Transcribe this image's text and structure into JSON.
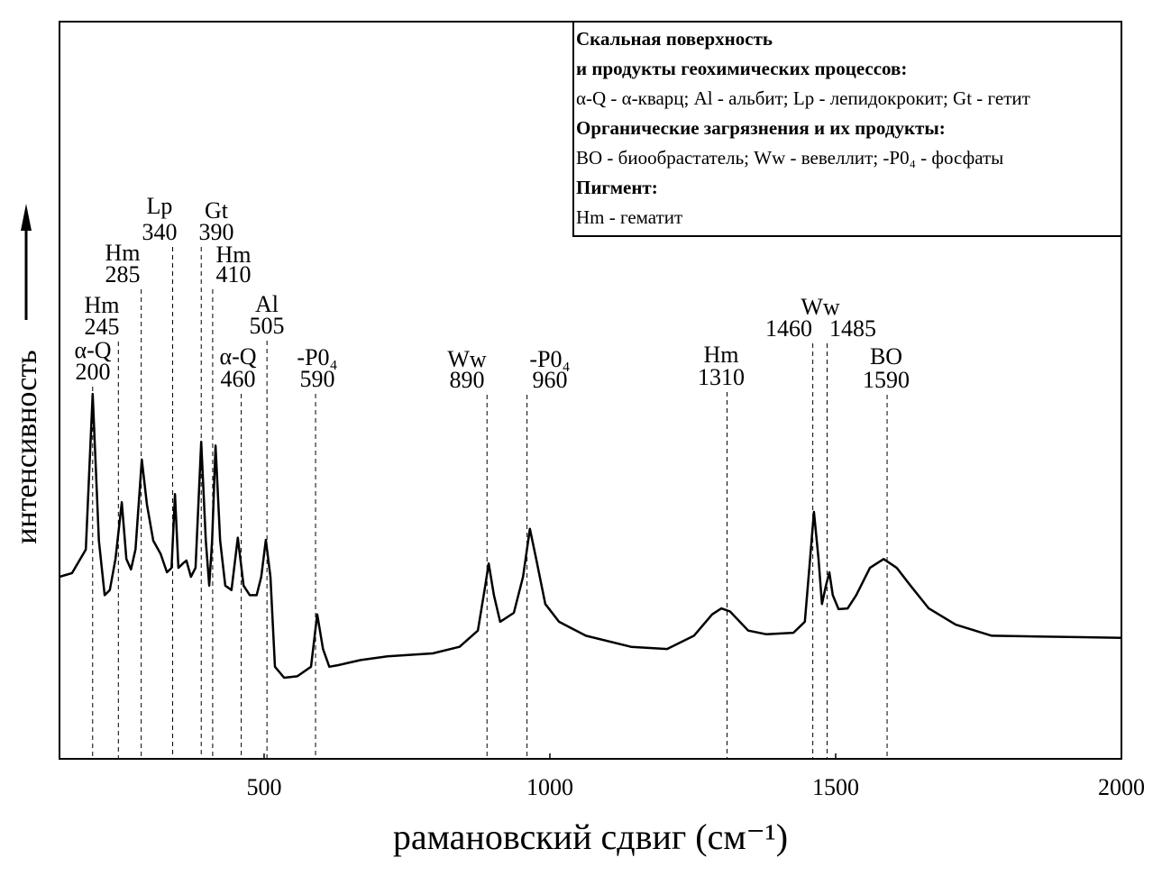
{
  "chart_data": {
    "type": "line",
    "x_label": "рамановский сдвиг (см⁻¹)",
    "y_label": "интенсивность",
    "xlim": [
      142,
      2000
    ],
    "ylim": [
      0,
      100
    ],
    "xticks": [
      500,
      1000,
      1500,
      2000
    ],
    "color": "#000000",
    "x": [
      142,
      164,
      188,
      200,
      211,
      221,
      230,
      240,
      251,
      259,
      267,
      275,
      286,
      295,
      306,
      319,
      330,
      338,
      344,
      350,
      358,
      364,
      372,
      380,
      390,
      398,
      404,
      409,
      415,
      423,
      432,
      443,
      454,
      464,
      475,
      487,
      495,
      503,
      511,
      519,
      535,
      558,
      582,
      593,
      603,
      614,
      629,
      669,
      716,
      795,
      842,
      874,
      887,
      893,
      902,
      913,
      937,
      953,
      965,
      976,
      992,
      1016,
      1063,
      1142,
      1205,
      1252,
      1284,
      1300,
      1315,
      1347,
      1379,
      1426,
      1446,
      1454,
      1462,
      1470,
      1476,
      1483,
      1489,
      1495,
      1505,
      1521,
      1536,
      1560,
      1584,
      1607,
      1631,
      1663,
      1710,
      1773,
      1852,
      1931,
      2000
    ],
    "values": [
      24.7,
      25.2,
      28.4,
      49.5,
      29.6,
      22.2,
      22.9,
      27.1,
      34.8,
      27.1,
      25.7,
      28.4,
      40.6,
      34.5,
      29.6,
      27.8,
      25.3,
      25.9,
      35.9,
      25.9,
      26.5,
      26.9,
      24.7,
      25.9,
      43.0,
      29.6,
      23.5,
      29.6,
      42.5,
      29.6,
      23.5,
      22.9,
      30.0,
      23.5,
      22.2,
      22.2,
      24.7,
      29.7,
      24.7,
      12.5,
      11.0,
      11.2,
      12.5,
      19.6,
      14.9,
      12.5,
      12.7,
      13.4,
      13.9,
      14.3,
      15.2,
      17.4,
      23.5,
      26.5,
      22.2,
      18.6,
      19.8,
      24.7,
      31.2,
      27.1,
      21.0,
      18.6,
      16.7,
      15.2,
      14.9,
      16.7,
      19.6,
      20.4,
      20.0,
      17.4,
      16.9,
      17.1,
      18.6,
      25.9,
      33.5,
      27.1,
      21.0,
      23.5,
      25.3,
      22.2,
      20.3,
      20.4,
      22.2,
      25.9,
      27.1,
      25.9,
      23.5,
      20.4,
      18.2,
      16.7,
      16.6,
      16.5,
      16.4
    ],
    "peaks": [
      {
        "position": 200,
        "label": "α-Q"
      },
      {
        "position": 245,
        "label": "Hm"
      },
      {
        "position": 285,
        "label": "Hm"
      },
      {
        "position": 340,
        "label": "Lp"
      },
      {
        "position": 390,
        "label": "Gt"
      },
      {
        "position": 410,
        "label": "Hm"
      },
      {
        "position": 460,
        "label": "α-Q"
      },
      {
        "position": 505,
        "label": "Al"
      },
      {
        "position": 590,
        "label": "-P0₄"
      },
      {
        "position": 890,
        "label": "Ww"
      },
      {
        "position": 960,
        "label": "-P0₄"
      },
      {
        "position": 1310,
        "label": "Hm"
      },
      {
        "position": 1460,
        "label": "Ww"
      },
      {
        "position": 1485,
        "label": null
      },
      {
        "position": 1590,
        "label": "BO"
      }
    ],
    "legend": [
      {
        "text": "Скальная поверхность",
        "bold": true
      },
      {
        "text": "и продукты геохимических процессов:",
        "bold": true
      },
      {
        "text": "α-Q - α-кварц; Al - альбит; Lp - лепидокрокит; Gt - гетит",
        "bold": false
      },
      {
        "text": "Органические загрязнения и их продукты:",
        "bold": true
      },
      {
        "text": "BO - биообрастатель; Ww - вевеллит; -P0₄ - фосфаты",
        "bold": false
      },
      {
        "text": "Пигмент:",
        "bold": true
      },
      {
        "text": "Hm - гематит",
        "bold": false
      }
    ]
  }
}
